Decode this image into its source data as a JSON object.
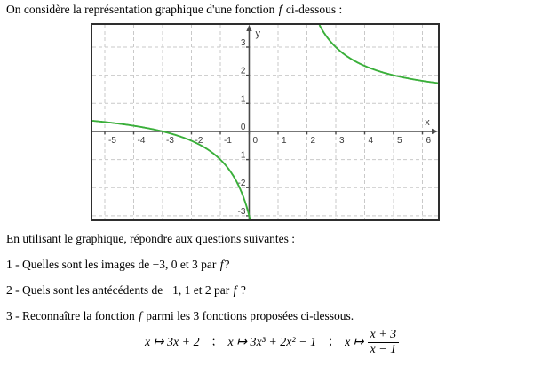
{
  "intro": {
    "pre": "On considère la représentation graphique d'une fonction ",
    "f": "f",
    "post": " ci-dessous :"
  },
  "instruction": {
    "text": "En utilisant le graphique, répondre aux questions suivantes :"
  },
  "questions": [
    {
      "pre": "1 - Quelles sont les images de −3, 0 et 3 par ",
      "f": "f",
      "post": "?"
    },
    {
      "pre": "2 - Quels sont les antécédents de −1, 1 et 2 par ",
      "f": "f",
      "post": " ?"
    },
    {
      "pre": "3 - Reconnaître la fonction ",
      "f": "f",
      "post": " parmi les 3 fonctions proposées ci-dessous."
    }
  ],
  "formulas": {
    "expr1": "x ↦ 3x + 2",
    "sep1": ";",
    "expr2": "x ↦ 3x³ + 2x² − 1",
    "sep2": ";",
    "expr3_prefix": "x ↦",
    "fraction": {
      "numerator": "x + 3",
      "denominator": "x − 1"
    }
  },
  "chart_data": {
    "type": "line",
    "title": "",
    "xlabel": "x",
    "ylabel": "y",
    "function_label": "f",
    "expression": "f(x) = (x+3)/(x-1)",
    "rational": {
      "num": [
        1,
        3
      ],
      "den": [
        1,
        -1
      ]
    },
    "xlim": [
      -5.43,
      6.54
    ],
    "ylim": [
      -3.13,
      3.79
    ],
    "x_ticks": [
      -5,
      -4,
      -3,
      -2,
      -1,
      0,
      1,
      2,
      3,
      4,
      5,
      6
    ],
    "y_ticks": [
      -3,
      -2,
      -1,
      0,
      1,
      2,
      3
    ],
    "grid": true,
    "legend": "none",
    "key_points": [
      [
        -3,
        0
      ],
      [
        0,
        -3
      ],
      [
        3,
        3
      ]
    ],
    "asymptotes": {
      "vertical_x": 1,
      "horizontal_y": 1
    },
    "branches": [
      {
        "x_range": [
          -5.43,
          0.0315
        ]
      },
      {
        "x_range": [
          2.4337,
          6.54
        ]
      }
    ],
    "colors": {
      "curve": "#3aaf3a",
      "grid": "#c9c9c9",
      "axis": "#4a4a4a",
      "border": "#2e2e2e",
      "tick_text": "#3a3a3a"
    }
  }
}
